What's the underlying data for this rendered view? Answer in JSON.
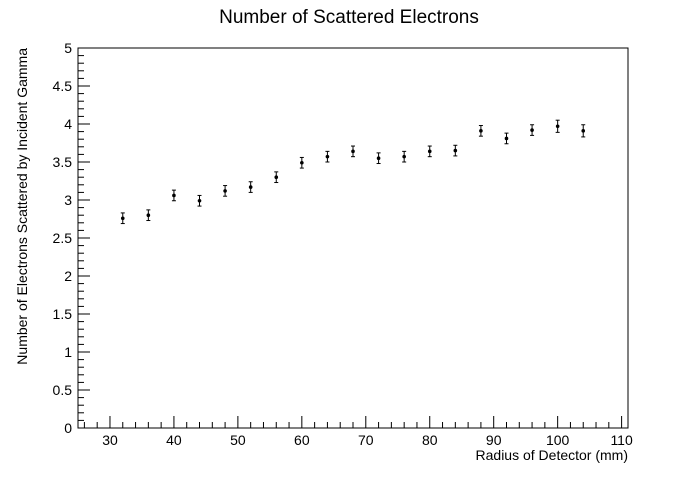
{
  "chart_data": {
    "type": "scatter",
    "title": "Number of Scattered Electrons",
    "xlabel": "Radius of Detector (mm)",
    "ylabel": "Number of Electrons Scattered by Incident Gamma",
    "xlim": [
      25,
      111
    ],
    "ylim": [
      0,
      5
    ],
    "x_ticks": [
      30,
      40,
      50,
      60,
      70,
      80,
      90,
      100,
      110
    ],
    "y_ticks": [
      0,
      0.5,
      1,
      1.5,
      2,
      2.5,
      3,
      3.5,
      4,
      4.5,
      5
    ],
    "x_tick_labels": [
      "30",
      "40",
      "50",
      "60",
      "70",
      "80",
      "90",
      "100",
      "110"
    ],
    "y_tick_labels": [
      "0",
      "0.5",
      "1",
      "1.5",
      "2",
      "2.5",
      "3",
      "3.5",
      "4",
      "4.5",
      "5"
    ],
    "grid": false,
    "legend": false,
    "marker_color": "#000000",
    "series": [
      {
        "x": [
          32,
          36,
          40,
          44,
          48,
          52,
          56,
          60,
          64,
          68,
          72,
          76,
          80,
          84,
          88,
          92,
          96,
          100,
          104
        ],
        "y": [
          2.76,
          2.8,
          3.06,
          2.99,
          3.12,
          3.17,
          3.3,
          3.49,
          3.57,
          3.64,
          3.55,
          3.57,
          3.64,
          3.65,
          3.91,
          3.81,
          3.92,
          3.97,
          3.91
        ],
        "yerr": [
          0.07,
          0.07,
          0.07,
          0.07,
          0.07,
          0.07,
          0.07,
          0.07,
          0.07,
          0.07,
          0.07,
          0.07,
          0.07,
          0.07,
          0.07,
          0.07,
          0.07,
          0.08,
          0.08
        ]
      }
    ]
  }
}
